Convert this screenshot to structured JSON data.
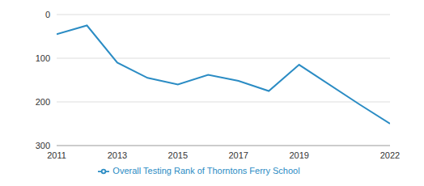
{
  "chart_data": {
    "type": "line",
    "x": [
      2011,
      2012,
      2013,
      2014,
      2015,
      2016,
      2017,
      2018,
      2019,
      2021,
      2022
    ],
    "series": [
      {
        "name": "Overall Testing Rank of Thorntons Ferry School",
        "color": "#2b8cc4",
        "values": [
          45,
          25,
          110,
          145,
          160,
          138,
          152,
          175,
          115,
          206,
          250
        ]
      }
    ],
    "xlim": [
      2011,
      2022
    ],
    "xticks": [
      2011,
      2013,
      2015,
      2017,
      2019,
      2022
    ],
    "ylim": [
      300,
      0
    ],
    "yticks": [
      0,
      100,
      200,
      300
    ],
    "grid": true
  }
}
